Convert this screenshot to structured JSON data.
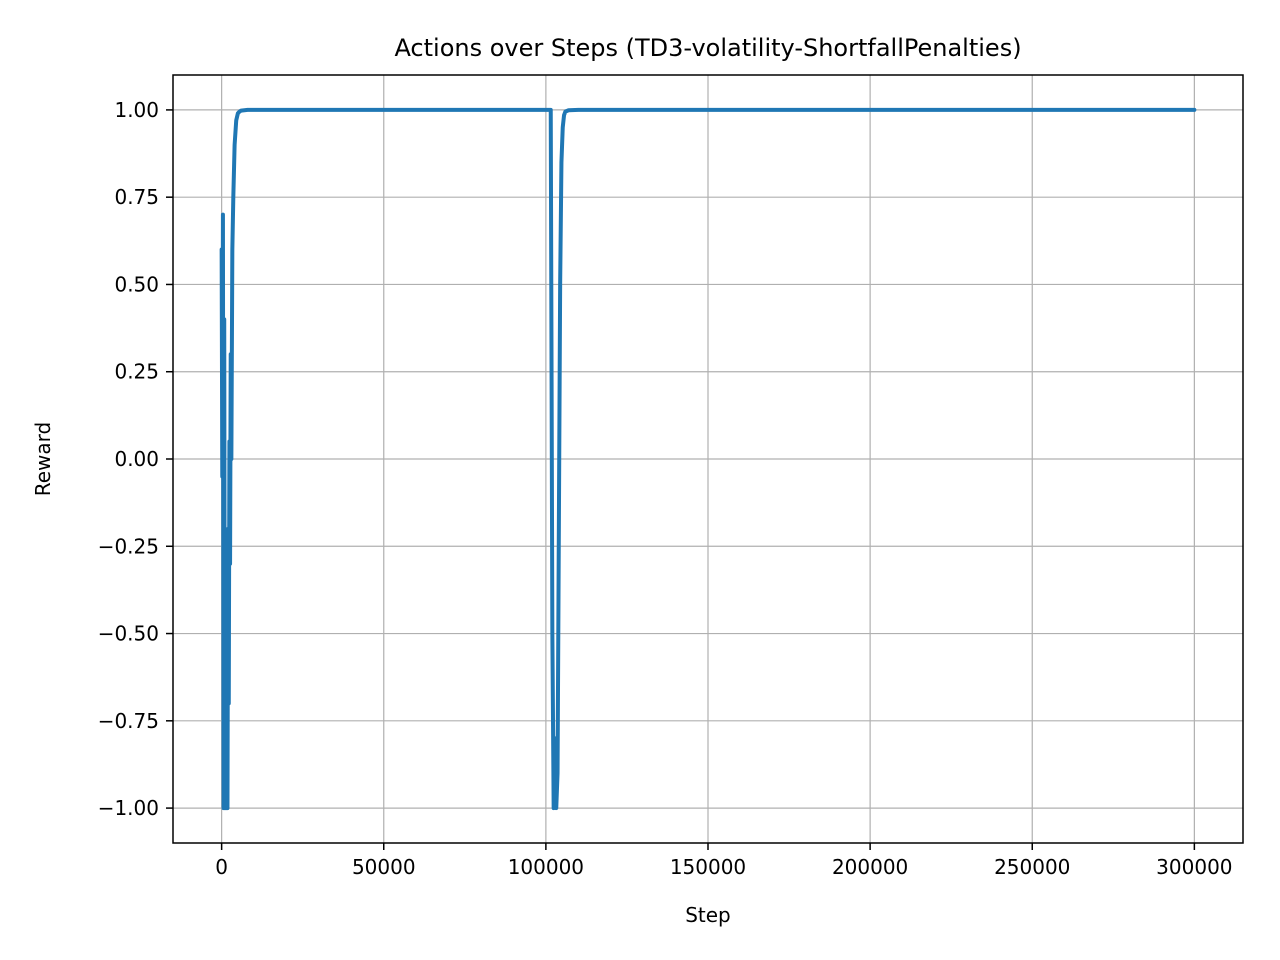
{
  "chart_data": {
    "type": "line",
    "title": "Actions over Steps (TD3-volatility-ShortfallPenalties)",
    "xlabel": "Step",
    "ylabel": "Reward",
    "xlim": [
      -15000,
      315000
    ],
    "ylim": [
      -1.1,
      1.1
    ],
    "xticks": [
      0,
      50000,
      100000,
      150000,
      200000,
      250000,
      300000
    ],
    "xtick_labels": [
      "0",
      "50000",
      "100000",
      "150000",
      "200000",
      "250000",
      "300000"
    ],
    "yticks": [
      1.0,
      0.75,
      0.5,
      0.25,
      0.0,
      -0.25,
      -0.5,
      -0.75,
      -1.0
    ],
    "ytick_labels": [
      "1.00",
      "0.75",
      "0.50",
      "0.25",
      "0.00",
      "−0.25",
      "−0.50",
      "−0.75",
      "−1.00"
    ],
    "grid": true,
    "legend": "none",
    "series": [
      {
        "color": "#1f77b4",
        "x": [
          0,
          200,
          400,
          600,
          800,
          1000,
          1200,
          1400,
          1600,
          1800,
          2000,
          2200,
          2400,
          2600,
          2800,
          3000,
          3300,
          3600,
          4000,
          4500,
          5000,
          5500,
          6000,
          7000,
          8000,
          10000,
          15000,
          20000,
          50000,
          100000,
          101000,
          101500,
          102000,
          102400,
          102800,
          103200,
          103600,
          104000,
          104400,
          104800,
          105200,
          105600,
          106000,
          107000,
          110000,
          150000,
          200000,
          250000,
          300000
        ],
        "y": [
          0.6,
          -0.05,
          0.7,
          -1.0,
          0.4,
          -1.0,
          -0.3,
          -1.0,
          -0.6,
          -1.0,
          -0.2,
          -0.7,
          0.05,
          -0.3,
          0.3,
          0.0,
          0.6,
          0.75,
          0.9,
          0.97,
          0.99,
          0.995,
          0.998,
          0.999,
          1.0,
          1.0,
          1.0,
          1.0,
          1.0,
          1.0,
          1.0,
          1.0,
          -0.5,
          -1.0,
          -0.8,
          -1.0,
          -0.9,
          -0.2,
          0.5,
          0.85,
          0.95,
          0.985,
          0.995,
          0.999,
          1.0,
          1.0,
          1.0,
          1.0,
          1.0
        ]
      }
    ]
  }
}
